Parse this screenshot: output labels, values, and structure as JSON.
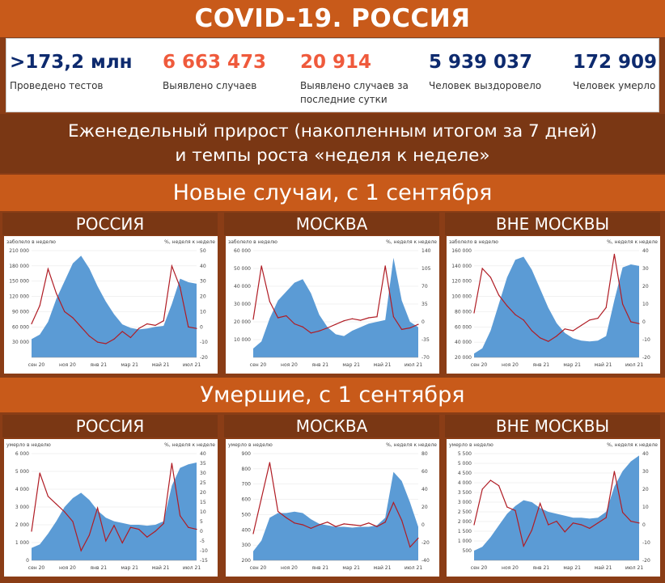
{
  "title": "COVID-19. РОССИЯ",
  "stats": [
    {
      "value": ">173,2 млн",
      "label": "Проведено тестов",
      "color": "#0d2a6e"
    },
    {
      "value": "6 663 473",
      "label": "Выявлено случаев",
      "color": "#ef5a3c"
    },
    {
      "value": "20 914",
      "label": "Выявлено случаев за последние сутки",
      "color": "#ef5a3c"
    },
    {
      "value": "5 939 037",
      "label": "Человек выздоровело",
      "color": "#0d2a6e"
    },
    {
      "value": "172 909",
      "label": "Человек умерло",
      "color": "#0d2a6e"
    }
  ],
  "weekly": {
    "line1": "Еженедельный прирост (накопленным итогом за 7 дней)",
    "line2": "и темпы роста «неделя к неделе»"
  },
  "section_cases": "Новые случаи, с 1 сентября",
  "section_deaths": "Умершие, с 1 сентября",
  "regions": [
    "РОССИЯ",
    "МОСКВА",
    "ВНЕ МОСКВЫ"
  ],
  "colors": {
    "area": "#5b9bd5",
    "line": "#b01c24",
    "band_light": "#c85a1a",
    "band_dark": "#7a3714"
  },
  "chart_data": [
    {
      "type": "area",
      "region": "РОССИЯ",
      "metric": "cases",
      "ylabel": "заболело в неделю",
      "y2label": "%, неделя к неделе",
      "x_ticks": [
        "сен 20",
        "ноя 20",
        "янв 21",
        "мар 21",
        "май 21",
        "июл 21"
      ],
      "y_ticks": [
        30000,
        60000,
        90000,
        120000,
        150000,
        180000,
        210000
      ],
      "ylim": [
        0,
        210000
      ],
      "y2_ticks": [
        -20,
        -10,
        0,
        10,
        20,
        30,
        40,
        50
      ],
      "y2lim": [
        -20,
        50
      ],
      "series": [
        {
          "name": "заболело в неделю",
          "axis": "left",
          "values": [
            36000,
            45000,
            70000,
            115000,
            150000,
            185000,
            200000,
            175000,
            140000,
            110000,
            85000,
            65000,
            58000,
            55000,
            57000,
            60000,
            62000,
            105000,
            155000,
            148000,
            145000
          ]
        },
        {
          "name": "%, неделя к неделе",
          "axis": "right",
          "values": [
            2,
            14,
            38,
            22,
            10,
            6,
            0,
            -6,
            -10,
            -11,
            -8,
            -3,
            -7,
            -1,
            2,
            1,
            4,
            40,
            26,
            0,
            -1
          ]
        }
      ]
    },
    {
      "type": "area",
      "region": "МОСКВА",
      "metric": "cases",
      "ylabel": "заболело в неделю",
      "y2label": "%, неделя к неделе",
      "x_ticks": [
        "сен 20",
        "ноя 20",
        "янв 21",
        "мар 21",
        "май 21",
        "июл 21"
      ],
      "y_ticks": [
        10000,
        20000,
        30000,
        40000,
        50000,
        60000
      ],
      "ylim": [
        0,
        60000
      ],
      "y2_ticks": [
        -70,
        -35,
        0,
        35,
        70,
        105,
        140
      ],
      "y2lim": [
        -70,
        140
      ],
      "series": [
        {
          "name": "заболело в неделю",
          "axis": "left",
          "values": [
            5000,
            9000,
            22000,
            32000,
            37000,
            42000,
            44000,
            36000,
            24000,
            17000,
            13000,
            12000,
            15000,
            17000,
            19000,
            20000,
            21000,
            56000,
            32000,
            20000,
            17000
          ]
        },
        {
          "name": "%, неделя к неделе",
          "axis": "right",
          "values": [
            5,
            110,
            40,
            8,
            12,
            -4,
            -10,
            -22,
            -18,
            -12,
            -5,
            2,
            6,
            3,
            8,
            10,
            110,
            10,
            -15,
            -12,
            -5
          ]
        }
      ]
    },
    {
      "type": "area",
      "region": "ВНЕ МОСКВЫ",
      "metric": "cases",
      "ylabel": "заболело в неделю",
      "y2label": "%, неделя к неделе",
      "x_ticks": [
        "сен 20",
        "ноя 20",
        "янв 21",
        "мар 21",
        "май 21",
        "июл 21"
      ],
      "y_ticks": [
        20000,
        40000,
        60000,
        80000,
        100000,
        120000,
        140000,
        160000
      ],
      "ylim": [
        20000,
        160000
      ],
      "y2_ticks": [
        -20,
        -10,
        0,
        10,
        20,
        30,
        40
      ],
      "y2lim": [
        -20,
        40
      ],
      "series": [
        {
          "name": "заболело в неделю",
          "axis": "left",
          "values": [
            25000,
            32000,
            55000,
            90000,
            125000,
            148000,
            152000,
            135000,
            110000,
            85000,
            65000,
            52000,
            45000,
            42000,
            41000,
            42000,
            48000,
            95000,
            138000,
            142000,
            140000
          ]
        },
        {
          "name": "%, неделя к неделе",
          "axis": "right",
          "values": [
            5,
            30,
            25,
            15,
            9,
            4,
            1,
            -5,
            -9,
            -11,
            -8,
            -4,
            -5,
            -2,
            1,
            2,
            8,
            38,
            10,
            0,
            -1
          ]
        }
      ]
    },
    {
      "type": "area",
      "region": "РОССИЯ",
      "metric": "deaths",
      "ylabel": "умерло в неделю",
      "y2label": "%, неделя к неделе",
      "x_ticks": [
        "сен 20",
        "ноя 20",
        "янв 21",
        "мар 21",
        "май 21",
        "июл 21"
      ],
      "y_ticks": [
        0,
        1000,
        2000,
        3000,
        4000,
        5000,
        6000
      ],
      "ylim": [
        0,
        6000
      ],
      "y2_ticks": [
        -15,
        -10,
        -5,
        0,
        5,
        10,
        15,
        20,
        25,
        30,
        35,
        40
      ],
      "y2lim": [
        -15,
        40
      ],
      "series": [
        {
          "name": "умерло в неделю",
          "axis": "left",
          "values": [
            700,
            900,
            1500,
            2200,
            3000,
            3500,
            3800,
            3400,
            2800,
            2400,
            2200,
            2100,
            2000,
            2000,
            1950,
            2000,
            2200,
            4200,
            5200,
            5400,
            5500
          ]
        },
        {
          "name": "%, неделя к неделе",
          "axis": "right",
          "values": [
            0,
            30,
            18,
            14,
            10,
            5,
            -10,
            -2,
            12,
            -5,
            3,
            -6,
            2,
            1,
            -3,
            0,
            4,
            35,
            8,
            2,
            1
          ]
        }
      ]
    },
    {
      "type": "area",
      "region": "МОСКВА",
      "metric": "deaths",
      "ylabel": "умерло в неделю",
      "y2label": "%, неделя к неделе",
      "x_ticks": [
        "сен 20",
        "ноя 20",
        "янв 21",
        "мар 21",
        "май 21",
        "июл 21"
      ],
      "y_ticks": [
        200,
        300,
        400,
        500,
        600,
        700,
        800,
        900
      ],
      "ylim": [
        200,
        900
      ],
      "y2_ticks": [
        -40,
        -20,
        0,
        20,
        40,
        60,
        80
      ],
      "y2lim": [
        -40,
        80
      ],
      "series": [
        {
          "name": "умерло в неделю",
          "axis": "left",
          "values": [
            260,
            330,
            480,
            510,
            510,
            520,
            510,
            470,
            440,
            430,
            420,
            420,
            415,
            420,
            420,
            430,
            480,
            780,
            720,
            580,
            420
          ]
        },
        {
          "name": "%, неделя к неделе",
          "axis": "right",
          "values": [
            -10,
            30,
            70,
            15,
            8,
            2,
            0,
            -4,
            0,
            3,
            -2,
            1,
            0,
            -1,
            2,
            -2,
            3,
            25,
            5,
            -25,
            -15
          ]
        }
      ]
    },
    {
      "type": "area",
      "region": "ВНЕ МОСКВЫ",
      "metric": "deaths",
      "ylabel": "умерло в неделю",
      "y2label": "%, неделя к неделе",
      "x_ticks": [
        "сен 20",
        "ноя 20",
        "янв 21",
        "мар 21",
        "май 21",
        "июл 21"
      ],
      "y_ticks": [
        500,
        1000,
        1500,
        2000,
        2500,
        3000,
        3500,
        4000,
        4500,
        5000,
        5500
      ],
      "ylim": [
        0,
        5500
      ],
      "y2_ticks": [
        -20,
        -10,
        0,
        10,
        20,
        30,
        40
      ],
      "y2lim": [
        -20,
        40
      ],
      "series": [
        {
          "name": "умерло в неделю",
          "axis": "left",
          "values": [
            500,
            700,
            1200,
            1800,
            2400,
            2800,
            3100,
            3000,
            2700,
            2500,
            2400,
            2300,
            2200,
            2200,
            2150,
            2200,
            2500,
            3800,
            4600,
            5100,
            5400
          ]
        },
        {
          "name": "%, неделя к неделе",
          "axis": "right",
          "values": [
            0,
            20,
            25,
            22,
            10,
            8,
            -12,
            -3,
            12,
            0,
            2,
            -4,
            1,
            0,
            -2,
            1,
            4,
            30,
            7,
            2,
            1
          ]
        }
      ]
    }
  ]
}
